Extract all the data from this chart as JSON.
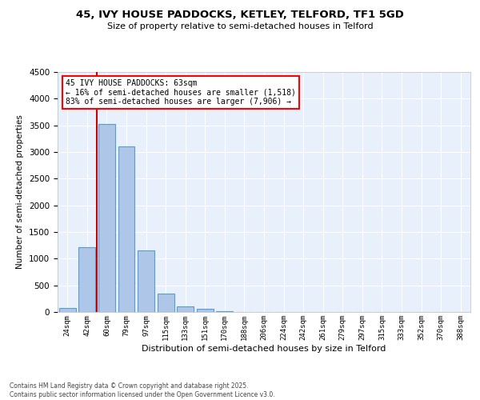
{
  "title": "45, IVY HOUSE PADDOCKS, KETLEY, TELFORD, TF1 5GD",
  "subtitle": "Size of property relative to semi-detached houses in Telford",
  "xlabel": "Distribution of semi-detached houses by size in Telford",
  "ylabel": "Number of semi-detached properties",
  "bar_labels": [
    "24sqm",
    "42sqm",
    "60sqm",
    "79sqm",
    "97sqm",
    "115sqm",
    "133sqm",
    "151sqm",
    "170sqm",
    "188sqm",
    "206sqm",
    "224sqm",
    "242sqm",
    "261sqm",
    "279sqm",
    "297sqm",
    "315sqm",
    "333sqm",
    "352sqm",
    "370sqm",
    "388sqm"
  ],
  "bar_values": [
    80,
    1220,
    3520,
    3100,
    1150,
    340,
    100,
    55,
    20,
    5,
    2,
    1,
    0,
    0,
    0,
    0,
    0,
    0,
    0,
    0,
    0
  ],
  "bar_color": "#aec6e8",
  "bar_edge_color": "#5b9bd5",
  "annotation_text": "45 IVY HOUSE PADDOCKS: 63sqm\n← 16% of semi-detached houses are smaller (1,518)\n83% of semi-detached houses are larger (7,906) →",
  "vline_color": "#cc0000",
  "ylim": [
    0,
    4500
  ],
  "yticks": [
    0,
    500,
    1000,
    1500,
    2000,
    2500,
    3000,
    3500,
    4000,
    4500
  ],
  "background_color": "#e8f0fb",
  "grid_color": "#ffffff",
  "footer_line1": "Contains HM Land Registry data © Crown copyright and database right 2025.",
  "footer_line2": "Contains public sector information licensed under the Open Government Licence v3.0."
}
